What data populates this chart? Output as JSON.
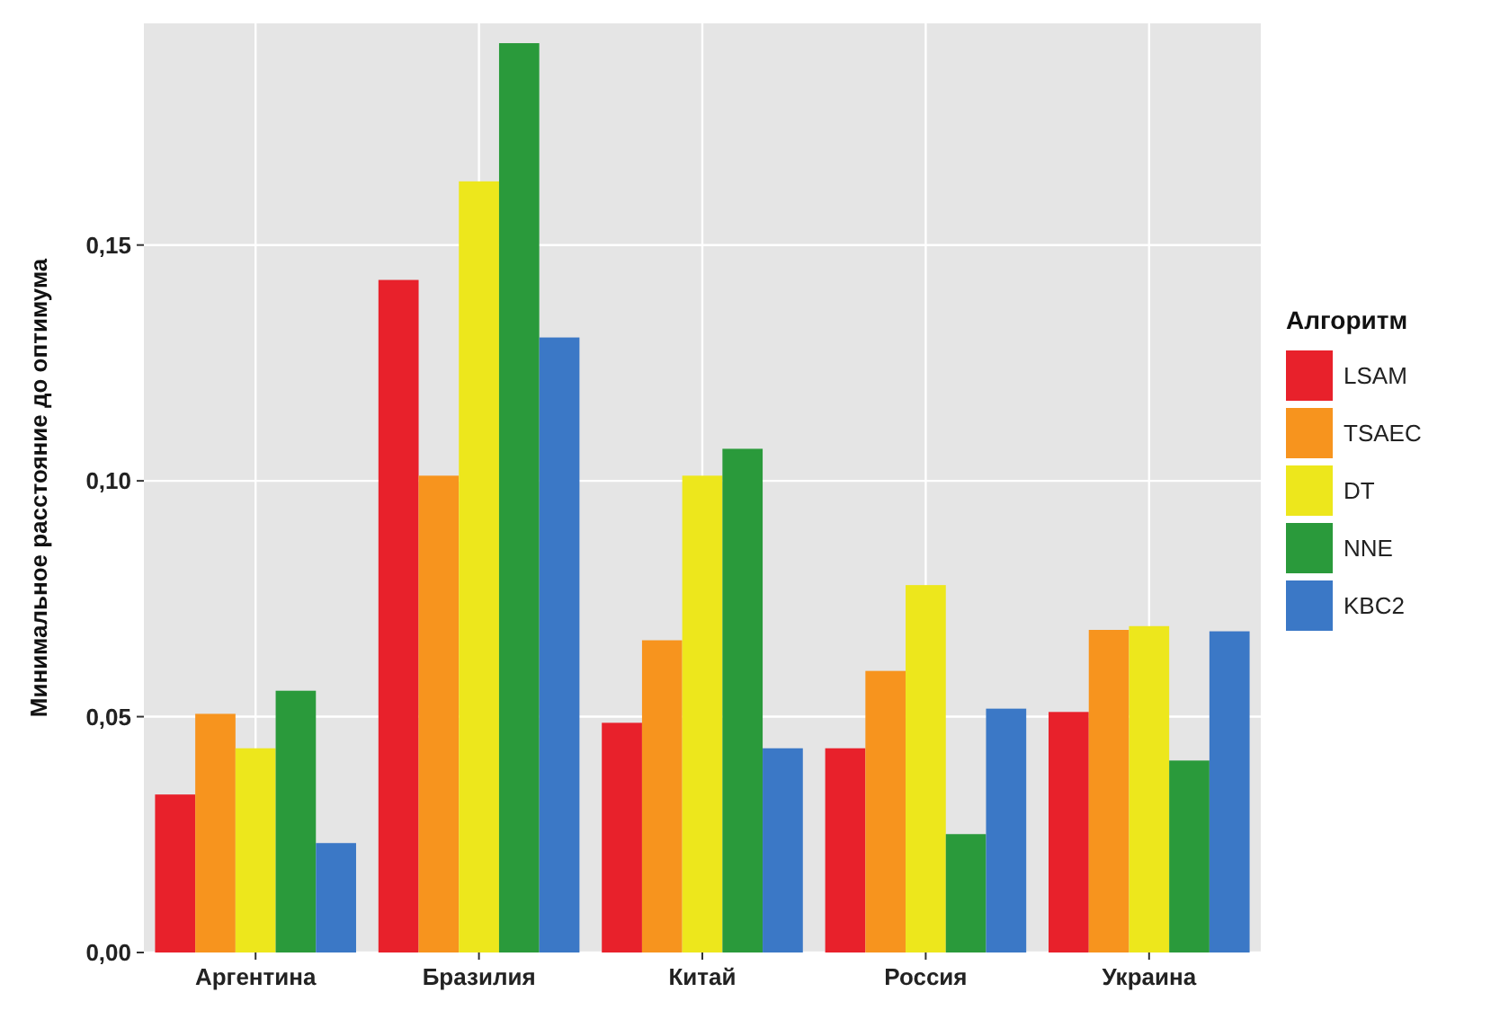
{
  "chart_data": {
    "type": "bar",
    "ylabel": "Минимальное расстояние до оптимума",
    "legend_title": "Алгоритм",
    "categories": [
      "Аргентина",
      "Бразилия",
      "Китай",
      "Россия",
      "Украина"
    ],
    "series": [
      {
        "name": "LSAM",
        "color": "#e8212b",
        "values": [
          0.0335,
          0.1426,
          0.0487,
          0.0433,
          0.051
        ]
      },
      {
        "name": "TSAEC",
        "color": "#f7941e",
        "values": [
          0.0506,
          0.1011,
          0.0662,
          0.0597,
          0.0684
        ]
      },
      {
        "name": "DT",
        "color": "#ede71c",
        "values": [
          0.0433,
          0.1635,
          0.1011,
          0.0779,
          0.0692
        ]
      },
      {
        "name": "NNE",
        "color": "#2a9a3b",
        "values": [
          0.0555,
          0.1928,
          0.1068,
          0.0251,
          0.0407
        ]
      },
      {
        "name": "KBC2",
        "color": "#3b78c6",
        "values": [
          0.0232,
          0.1304,
          0.0433,
          0.0517,
          0.0681
        ]
      }
    ],
    "ylim": [
      0,
      0.197
    ],
    "yticks": [
      {
        "value": 0,
        "label": "0,00"
      },
      {
        "value": 0.05,
        "label": "0,05"
      },
      {
        "value": 0.1,
        "label": "0,10"
      },
      {
        "value": 0.15,
        "label": "0,15"
      }
    ],
    "grid": true,
    "legend": "right"
  }
}
